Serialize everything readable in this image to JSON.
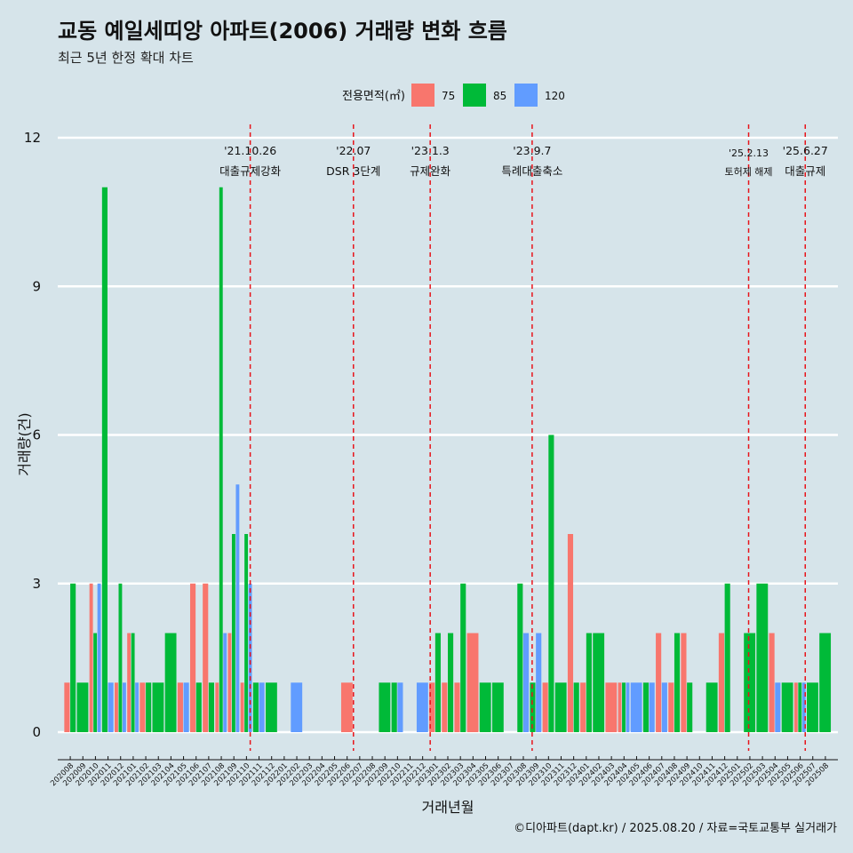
{
  "chart_data": {
    "type": "bar",
    "title": "교동 예일세띠앙 아파트(2006) 거래량 변화 흐름",
    "subtitle": "최근 5년 한정 확대 차트",
    "xlabel": "거래년월",
    "ylabel": "거래량(건)",
    "legend_title": "전용면적(㎡)",
    "legend_position": "top",
    "caption": "©디아파트(dapt.kr) / 2025.08.20 / 자료=국토교통부 실거래가",
    "ylim": [
      0,
      12
    ],
    "yticks": [
      0,
      3,
      6,
      9,
      12
    ],
    "grid": true,
    "categories": [
      "202008",
      "202009",
      "202010",
      "202011",
      "202012",
      "202101",
      "202102",
      "202103",
      "202104",
      "202105",
      "202106",
      "202107",
      "202108",
      "202109",
      "202110",
      "202111",
      "202112",
      "202201",
      "202202",
      "202203",
      "202204",
      "202205",
      "202206",
      "202207",
      "202208",
      "202209",
      "202210",
      "202211",
      "202212",
      "202301",
      "202302",
      "202303",
      "202304",
      "202305",
      "202306",
      "202307",
      "202308",
      "202309",
      "202310",
      "202311",
      "202312",
      "202401",
      "202402",
      "202403",
      "202404",
      "202405",
      "202406",
      "202407",
      "202408",
      "202409",
      "202410",
      "202411",
      "202412",
      "202501",
      "202502",
      "202503",
      "202504",
      "202505",
      "202506",
      "202507",
      "202508"
    ],
    "series": [
      {
        "name": "75",
        "color": "#f8766d",
        "values": [
          1,
          0,
          3,
          0,
          1,
          2,
          1,
          0,
          0,
          1,
          3,
          3,
          1,
          2,
          1,
          0,
          0,
          0,
          0,
          0,
          0,
          0,
          1,
          0,
          0,
          0,
          0,
          0,
          0,
          1,
          1,
          1,
          2,
          0,
          0,
          0,
          0,
          0,
          1,
          0,
          4,
          1,
          0,
          1,
          1,
          0,
          0,
          2,
          1,
          2,
          0,
          0,
          2,
          0,
          0,
          0,
          2,
          0,
          1,
          0,
          0
        ]
      },
      {
        "name": "85",
        "color": "#00ba38",
        "values": [
          3,
          1,
          2,
          11,
          3,
          2,
          1,
          1,
          2,
          0,
          1,
          1,
          11,
          4,
          4,
          1,
          1,
          0,
          0,
          0,
          0,
          0,
          0,
          0,
          0,
          1,
          1,
          0,
          0,
          2,
          2,
          3,
          0,
          1,
          1,
          0,
          3,
          1,
          6,
          1,
          1,
          2,
          2,
          0,
          1,
          0,
          1,
          0,
          2,
          1,
          0,
          1,
          3,
          0,
          2,
          3,
          0,
          1,
          1,
          1,
          2
        ]
      },
      {
        "name": "120",
        "color": "#619cff",
        "values": [
          0,
          0,
          3,
          1,
          1,
          1,
          0,
          0,
          0,
          1,
          0,
          0,
          2,
          5,
          3,
          1,
          0,
          0,
          1,
          0,
          0,
          0,
          0,
          0,
          0,
          0,
          1,
          0,
          1,
          0,
          0,
          0,
          0,
          0,
          0,
          0,
          2,
          2,
          0,
          0,
          0,
          0,
          0,
          0,
          1,
          1,
          1,
          1,
          0,
          0,
          0,
          0,
          0,
          0,
          0,
          0,
          1,
          0,
          1,
          0,
          0
        ]
      }
    ],
    "events": [
      {
        "date": "'21.10.26",
        "label": "대출규제강화",
        "category": "202110",
        "offset": 0.8
      },
      {
        "date": "'22.07",
        "label": "DSR 3단계",
        "category": "202207",
        "offset": 0.0
      },
      {
        "date": "'23.1.3",
        "label": "규제완화",
        "category": "202301",
        "offset": 0.1
      },
      {
        "date": "'23.9.7",
        "label": "특례대출축소",
        "category": "202309",
        "offset": 0.2
      },
      {
        "date": "'25.2.13",
        "label": "토허제 해제",
        "category": "202502",
        "offset": 0.4
      },
      {
        "date": "'25.6.27",
        "label": "대출규제",
        "category": "202506",
        "offset": 0.9
      }
    ]
  }
}
